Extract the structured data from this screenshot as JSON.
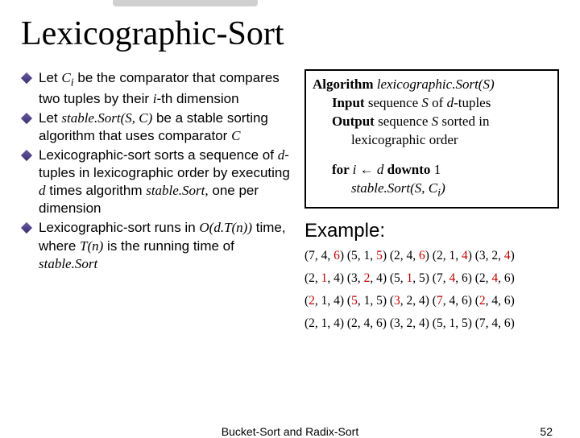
{
  "title": "Lexicographic-Sort",
  "bullets": {
    "b1_pre": "Let ",
    "b1_ci": "C",
    "b1_i": "i",
    "b1_mid": " be the comparator that compares two tuples by their ",
    "b1_ith": "i",
    "b1_post": "-th dimension",
    "b2_pre": "Let ",
    "b2_ss": "stable.Sort",
    "b2_sc": "(S, C)",
    "b2_mid": " be a stable sorting algorithm that uses comparator ",
    "b2_c": "C",
    "b3_pre": "Lexicographic-sort sorts a sequence of ",
    "b3_d": "d",
    "b3_mid1": "-tuples in lexicographic order by executing ",
    "b3_d2": "d",
    "b3_mid2": " times algorithm ",
    "b3_ss": "stable.Sort,",
    "b3_post": " one per dimension",
    "b4_pre": "Lexicographic-sort runs in ",
    "b4_o": "O",
    "b4_dtn": "(d.T(n))",
    "b4_mid": " time, where ",
    "b4_tn": "T(n)",
    "b4_mid2": " is the running time of ",
    "b4_ss": "stable.Sort"
  },
  "algo": {
    "kw_algo": "Algorithm",
    "name": " lexicographic.Sort(S)",
    "kw_input": "Input",
    "input_txt1": " sequence ",
    "input_s": "S",
    "input_txt2": " of ",
    "input_d": "d",
    "input_txt3": "-tuples",
    "kw_output": "Output",
    "output_txt1": " sequence ",
    "output_s": "S",
    "output_txt2": " sorted in",
    "output_txt3": "lexicographic order",
    "kw_for": "for ",
    "for_i": "i",
    "for_arrow": " ← ",
    "for_d": "d",
    "kw_downto": " downto ",
    "for_one": "1",
    "body": "stable.Sort(S, C",
    "body_i": "i",
    "body_end": ")"
  },
  "example": {
    "label": "Example:",
    "line1": {
      "a": "(7, 4, ",
      "r1": "6",
      "b": ") (5, 1, ",
      "r2": "5",
      "c": ") (2, 4, ",
      "r3": "6",
      "d": ") (2, 1, ",
      "r4": "4",
      "e": ") (3, 2, ",
      "r5": "4",
      "f": ")"
    },
    "line2": {
      "a": "(2, ",
      "r1": "1",
      "b": ", 4) (3, ",
      "r2": "2",
      "c": ", 4) (5, ",
      "r3": "1",
      "d": ", 5) (7, ",
      "r4": "4",
      "e": ", 6) (2, ",
      "r5": "4",
      "f": ", 6)"
    },
    "line3": {
      "a": "(",
      "r1": "2",
      "b": ", 1, 4) (",
      "r2": "5",
      "c": ", 1, 5) (",
      "r3": "3",
      "d": ", 2, 4) (",
      "r4": "7",
      "e": ", 4, 6) (",
      "r5": "2",
      "f": ", 4, 6)"
    },
    "line4": "(2, 1, 4) (2, 4, 6) (3, 2, 4) (5, 1, 5) (7, 4, 6)"
  },
  "footer": {
    "center": "Bucket-Sort and Radix-Sort",
    "page": "52"
  },
  "colors": {
    "highlight": "#c00000",
    "bullet": "#3a2d6b"
  }
}
